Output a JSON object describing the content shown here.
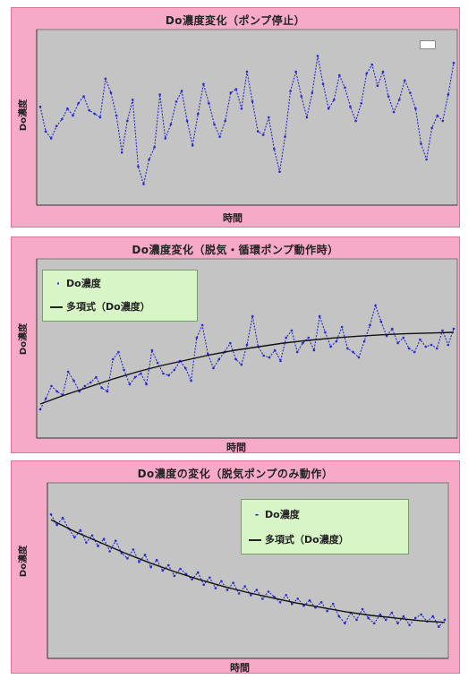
{
  "chart_data": [
    {
      "type": "line",
      "title": "Do濃度変化（ポンプ停止）",
      "xlabel": "時間",
      "ylabel": "Do濃度",
      "grid": false,
      "legend": "top-right",
      "series": [
        {
          "values": [
            5.6,
            4.2,
            3.8,
            4.5,
            4.9,
            5.5,
            5.1,
            5.8,
            6.2,
            5.4,
            5.2,
            5.0,
            7.2,
            6.4,
            5.1,
            3.0,
            4.8,
            6.0,
            2.2,
            1.2,
            2.6,
            3.3,
            6.3,
            3.8,
            4.6,
            5.9,
            6.5,
            4.8,
            3.4,
            5.2,
            6.9,
            5.8,
            4.6,
            3.9,
            4.8,
            6.4,
            6.6,
            5.5,
            7.6,
            5.9,
            4.2,
            4.0,
            5.0,
            3.2,
            1.9,
            3.9,
            6.5,
            7.6,
            6.2,
            5.0,
            6.4,
            8.5,
            6.9,
            5.5,
            6.0,
            7.4,
            6.7,
            5.6,
            4.8,
            5.8,
            7.5,
            8.0,
            6.8,
            7.6,
            6.2,
            5.3,
            6.0,
            7.1,
            6.4,
            5.5,
            3.5,
            2.6,
            4.4,
            5.1,
            4.8,
            6.3,
            8.1
          ]
        }
      ]
    },
    {
      "type": "line",
      "title": "Do濃度変化（脱気・循環ポンプ動作時）",
      "xlabel": "時間",
      "ylabel": "Do濃度",
      "grid": false,
      "legend": "top-left",
      "series": [
        {
          "name": "Do濃度",
          "values": [
            1.6,
            2.2,
            2.9,
            2.6,
            2.4,
            3.7,
            3.2,
            2.6,
            2.9,
            3.1,
            3.4,
            2.8,
            2.6,
            4.4,
            4.8,
            3.8,
            3.0,
            3.4,
            3.6,
            3.0,
            4.9,
            4.2,
            3.6,
            3.5,
            3.8,
            4.3,
            3.9,
            3.2,
            5.6,
            6.3,
            4.7,
            3.9,
            4.4,
            4.8,
            5.3,
            4.4,
            4.1,
            5.2,
            6.8,
            5.1,
            4.6,
            4.5,
            4.9,
            4.3,
            5.6,
            6.0,
            4.8,
            5.3,
            5.6,
            4.9,
            6.8,
            5.9,
            5.1,
            5.4,
            6.2,
            5.0,
            4.8,
            4.5,
            5.4,
            6.3,
            7.4,
            6.5,
            5.7,
            6.1,
            5.3,
            5.6,
            5.0,
            4.8,
            5.5,
            5.1,
            5.2,
            5.0,
            6.0,
            5.2,
            6.1
          ]
        },
        {
          "name": "多項式（Do濃度）",
          "values": [
            1.9,
            2.4,
            2.85,
            3.3,
            3.7,
            4.05,
            4.35,
            4.65,
            4.9,
            5.1,
            5.3,
            5.45,
            5.58,
            5.68,
            5.76,
            5.82,
            5.86,
            5.9
          ]
        }
      ]
    },
    {
      "type": "line",
      "title": "Do濃度の変化（脱気ポンプのみ動作）",
      "xlabel": "時間",
      "ylabel": "Do濃度",
      "grid": false,
      "legend": "top-right",
      "series": [
        {
          "name": "Do濃度",
          "values": [
            8.2,
            7.6,
            8.0,
            7.4,
            6.9,
            7.3,
            6.6,
            7.0,
            6.4,
            6.8,
            6.1,
            6.7,
            6.0,
            5.7,
            6.2,
            5.5,
            5.9,
            5.2,
            5.6,
            5.0,
            5.3,
            4.7,
            5.1,
            4.8,
            4.5,
            4.9,
            4.2,
            4.6,
            4.0,
            4.4,
            3.9,
            4.3,
            3.7,
            4.1,
            3.6,
            3.9,
            3.4,
            3.8,
            3.5,
            3.2,
            3.6,
            3.1,
            3.4,
            3.0,
            3.3,
            2.9,
            3.2,
            2.7,
            3.1,
            2.4,
            2.0,
            2.6,
            2.2,
            2.8,
            2.3,
            2.0,
            2.5,
            2.2,
            2.6,
            2.0,
            2.4,
            1.9,
            2.3,
            2.5,
            2.1,
            2.4,
            1.8,
            2.2
          ]
        },
        {
          "name": "多項式（Do濃度）",
          "values": [
            7.9,
            7.2,
            6.6,
            6.0,
            5.45,
            4.95,
            4.5,
            4.1,
            3.75,
            3.45,
            3.15,
            2.9,
            2.65,
            2.45,
            2.3,
            2.15,
            2.05
          ]
        }
      ]
    }
  ]
}
